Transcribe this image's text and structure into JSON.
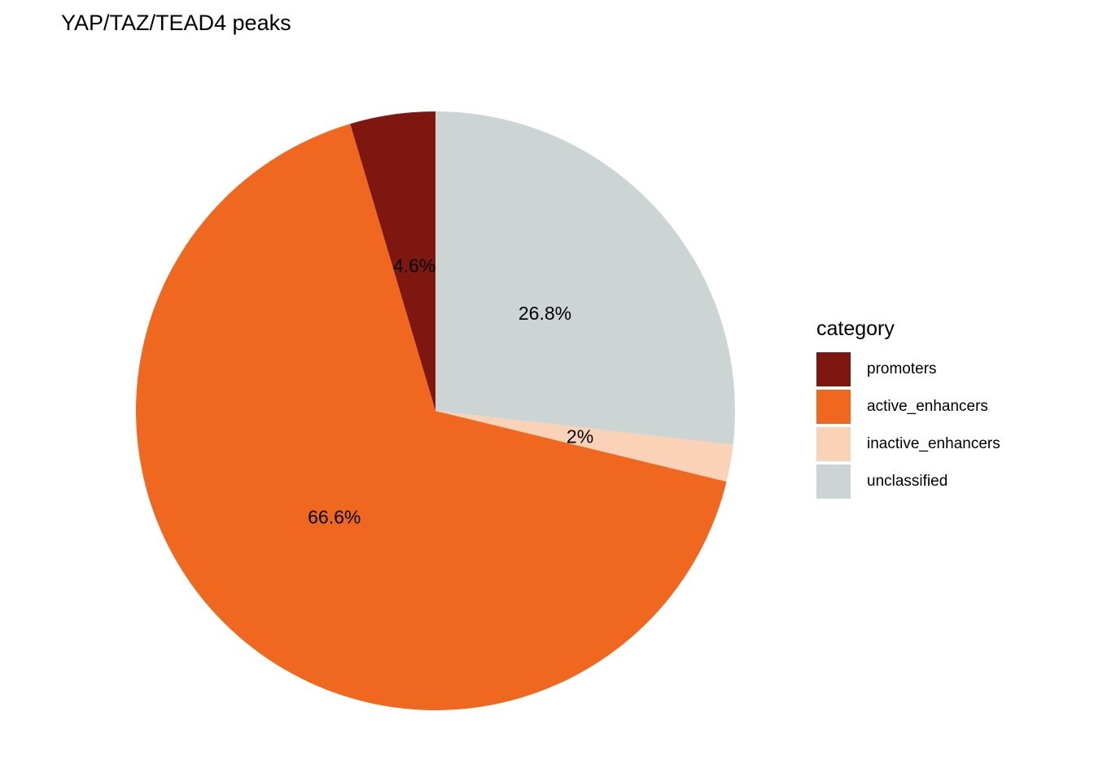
{
  "title": "YAP/TAZ/TEAD4 peaks",
  "legend": {
    "title": "category",
    "items": [
      {
        "label": "promoters",
        "color": "#7D1710"
      },
      {
        "label": "active_enhancers",
        "color": "#F0681F"
      },
      {
        "label": "inactive_enhancers",
        "color": "#F9D2B8"
      },
      {
        "label": "unclassified",
        "color": "#CDD4D4"
      }
    ]
  },
  "chart_data": {
    "type": "pie",
    "title": "YAP/TAZ/TEAD4 peaks",
    "categories": [
      "promoters",
      "active_enhancers",
      "inactive_enhancers",
      "unclassified"
    ],
    "values": [
      4.6,
      66.6,
      2,
      26.8
    ],
    "labels": [
      "4.6%",
      "66.6%",
      "2%",
      "26.8%"
    ],
    "colors": [
      "#7D1710",
      "#F0681F",
      "#F9D2B8",
      "#CDD4D4"
    ],
    "legend_title": "category",
    "legend_position": "right",
    "start_angle_deg": -90,
    "direction": "counterclockwise"
  }
}
